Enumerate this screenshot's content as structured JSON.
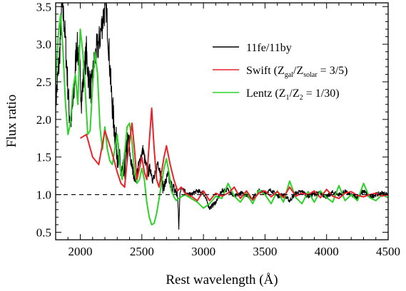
{
  "chart_data": {
    "type": "line",
    "xlabel": "Rest wavelength (Å)",
    "ylabel": "Flux ratio",
    "xlim": [
      1800,
      4500
    ],
    "ylim": [
      0.4,
      3.55
    ],
    "x_ticks": [
      2000,
      2500,
      3000,
      3500,
      4000,
      4500
    ],
    "y_ticks": [
      0.5,
      1.0,
      1.5,
      2.0,
      2.5,
      3.0,
      3.5
    ],
    "x_tick_labels": [
      "2000",
      "2500",
      "3000",
      "3500",
      "4000",
      "4500"
    ],
    "y_tick_labels": [
      "0.5",
      "1.0",
      "1.5",
      "2.0",
      "2.5",
      "3.0",
      "3.5"
    ],
    "grid": false,
    "legend_position": "upper-right",
    "reference_line": {
      "y": 1.0,
      "style": "dashed",
      "color": "#000000"
    },
    "legend": [
      {
        "series": "11fe/11by",
        "text": "11fe/11by"
      },
      {
        "series": "Swift",
        "text": "Swift (Z",
        "sub1": "gal",
        "mid": "/Z",
        "sub2": "solar",
        "tail": " = 3/5)"
      },
      {
        "series": "Lentz",
        "text": "Lentz (Z",
        "sub1": "1",
        "mid": "/Z",
        "sub2": "2",
        "tail": " = 1/30)"
      }
    ],
    "series": [
      {
        "name": "11fe/11by",
        "color": "#000000",
        "noisy": true,
        "x": [
          1800,
          1830,
          1850,
          1870,
          1890,
          1910,
          1930,
          1950,
          1970,
          1990,
          2010,
          2030,
          2050,
          2070,
          2090,
          2110,
          2130,
          2150,
          2170,
          2190,
          2210,
          2230,
          2250,
          2270,
          2290,
          2310,
          2330,
          2350,
          2370,
          2390,
          2410,
          2430,
          2450,
          2470,
          2490,
          2510,
          2530,
          2550,
          2570,
          2590,
          2610,
          2630,
          2650,
          2670,
          2690,
          2710,
          2730,
          2750,
          2770,
          2790,
          2800,
          2810,
          2830,
          2850,
          2870,
          2900,
          2950,
          3000,
          3050,
          3100,
          3150,
          3200,
          3250,
          3300,
          3350,
          3400,
          3450,
          3500,
          3550,
          3600,
          3650,
          3700,
          3750,
          3800,
          3850,
          3900,
          3950,
          4000,
          4050,
          4100,
          4150,
          4200,
          4250,
          4300,
          4350,
          4400,
          4450,
          4500
        ],
        "y": [
          2.2,
          2.8,
          3.5,
          3.3,
          2.7,
          2.1,
          2.0,
          2.4,
          3.0,
          2.8,
          2.3,
          2.6,
          2.9,
          2.5,
          2.4,
          2.7,
          2.9,
          3.0,
          3.2,
          3.4,
          3.5,
          3.0,
          2.4,
          2.0,
          1.7,
          1.5,
          1.3,
          1.25,
          1.5,
          1.7,
          1.45,
          1.3,
          1.2,
          1.35,
          1.5,
          1.6,
          1.4,
          1.3,
          1.35,
          1.2,
          1.25,
          1.45,
          1.3,
          1.1,
          1.15,
          1.25,
          1.15,
          1.1,
          1.05,
          1.0,
          0.55,
          1.05,
          1.1,
          1.05,
          1.0,
          1.0,
          1.05,
          1.02,
          0.82,
          0.9,
          1.05,
          1.07,
          0.97,
          1.02,
          1.0,
          0.95,
          1.05,
          1.02,
          1.06,
          0.98,
          1.0,
          0.92,
          1.02,
          1.04,
          0.98,
          1.01,
          1.02,
          0.97,
          1.03,
          1.0,
          1.04,
          0.99,
          0.96,
          1.05,
          0.97,
          1.0,
          1.02,
          1.0
        ]
      },
      {
        "name": "Swift",
        "color": "#e8232a",
        "noisy": false,
        "x": [
          2000,
          2050,
          2100,
          2150,
          2200,
          2250,
          2300,
          2330,
          2360,
          2380,
          2400,
          2420,
          2440,
          2460,
          2480,
          2500,
          2520,
          2540,
          2560,
          2580,
          2600,
          2620,
          2640,
          2660,
          2680,
          2700,
          2730,
          2760,
          2790,
          2820,
          2850,
          2900,
          2950,
          3000,
          3050,
          3100,
          3150,
          3200,
          3250,
          3300,
          3350,
          3400,
          3450,
          3500,
          3550,
          3600,
          3650,
          3700,
          3750,
          3800,
          3850,
          3900,
          3950,
          4000,
          4050,
          4100,
          4150,
          4200,
          4250,
          4300,
          4350,
          4400,
          4450,
          4500
        ],
        "y": [
          1.75,
          1.8,
          1.5,
          1.4,
          1.85,
          1.6,
          1.3,
          1.15,
          1.1,
          1.45,
          1.7,
          1.95,
          1.6,
          1.2,
          1.35,
          1.5,
          1.3,
          1.2,
          1.7,
          2.15,
          1.6,
          1.2,
          1.1,
          1.3,
          1.5,
          1.65,
          1.4,
          1.2,
          1.05,
          1.1,
          1.02,
          0.98,
          0.92,
          1.05,
          0.92,
          1.02,
          0.98,
          1.02,
          1.1,
          0.95,
          1.05,
          0.93,
          1.02,
          1.05,
          0.97,
          1.04,
          0.96,
          1.1,
          0.98,
          1.02,
          1.0,
          1.05,
          0.96,
          1.07,
          0.98,
          0.95,
          1.02,
          1.04,
          0.99,
          0.97,
          1.0,
          1.02,
          0.98,
          1.0
        ]
      },
      {
        "name": "Lentz",
        "color": "#2fd22a",
        "noisy": false,
        "x": [
          1800,
          1820,
          1840,
          1860,
          1880,
          1900,
          1920,
          1940,
          1960,
          1980,
          2000,
          2020,
          2040,
          2060,
          2080,
          2100,
          2120,
          2140,
          2160,
          2180,
          2200,
          2220,
          2240,
          2260,
          2280,
          2300,
          2320,
          2340,
          2360,
          2380,
          2400,
          2420,
          2440,
          2460,
          2480,
          2500,
          2520,
          2540,
          2560,
          2580,
          2600,
          2620,
          2640,
          2660,
          2680,
          2700,
          2720,
          2740,
          2760,
          2780,
          2800,
          2850,
          2900,
          2950,
          3000,
          3050,
          3100,
          3150,
          3200,
          3250,
          3300,
          3350,
          3400,
          3450,
          3500,
          3550,
          3600,
          3650,
          3700,
          3750,
          3800,
          3850,
          3900,
          3950,
          4000,
          4050,
          4100,
          4150,
          4200,
          4250,
          4300,
          4350,
          4400,
          4450,
          4500
        ],
        "y": [
          2.45,
          3.1,
          3.4,
          2.9,
          2.2,
          1.8,
          1.95,
          2.4,
          2.6,
          2.2,
          3.2,
          2.9,
          2.4,
          1.8,
          1.85,
          2.45,
          2.9,
          2.6,
          1.9,
          1.6,
          1.9,
          1.6,
          1.45,
          1.4,
          1.6,
          1.8,
          1.4,
          1.2,
          1.55,
          1.9,
          1.95,
          1.7,
          1.3,
          1.15,
          1.2,
          1.35,
          1.2,
          0.9,
          0.7,
          0.6,
          0.62,
          0.75,
          0.95,
          1.15,
          1.35,
          1.48,
          1.3,
          1.05,
          0.97,
          0.92,
          0.95,
          1.0,
          0.95,
          0.9,
          0.82,
          0.88,
          0.98,
          0.95,
          1.15,
          0.98,
          0.9,
          1.02,
          0.88,
          1.06,
          1.0,
          0.88,
          1.05,
          0.9,
          1.18,
          0.96,
          0.88,
          1.04,
          0.9,
          1.05,
          0.96,
          0.9,
          1.12,
          0.92,
          1.0,
          0.92,
          1.15,
          0.96,
          0.92,
          1.0,
          0.96
        ]
      }
    ]
  }
}
